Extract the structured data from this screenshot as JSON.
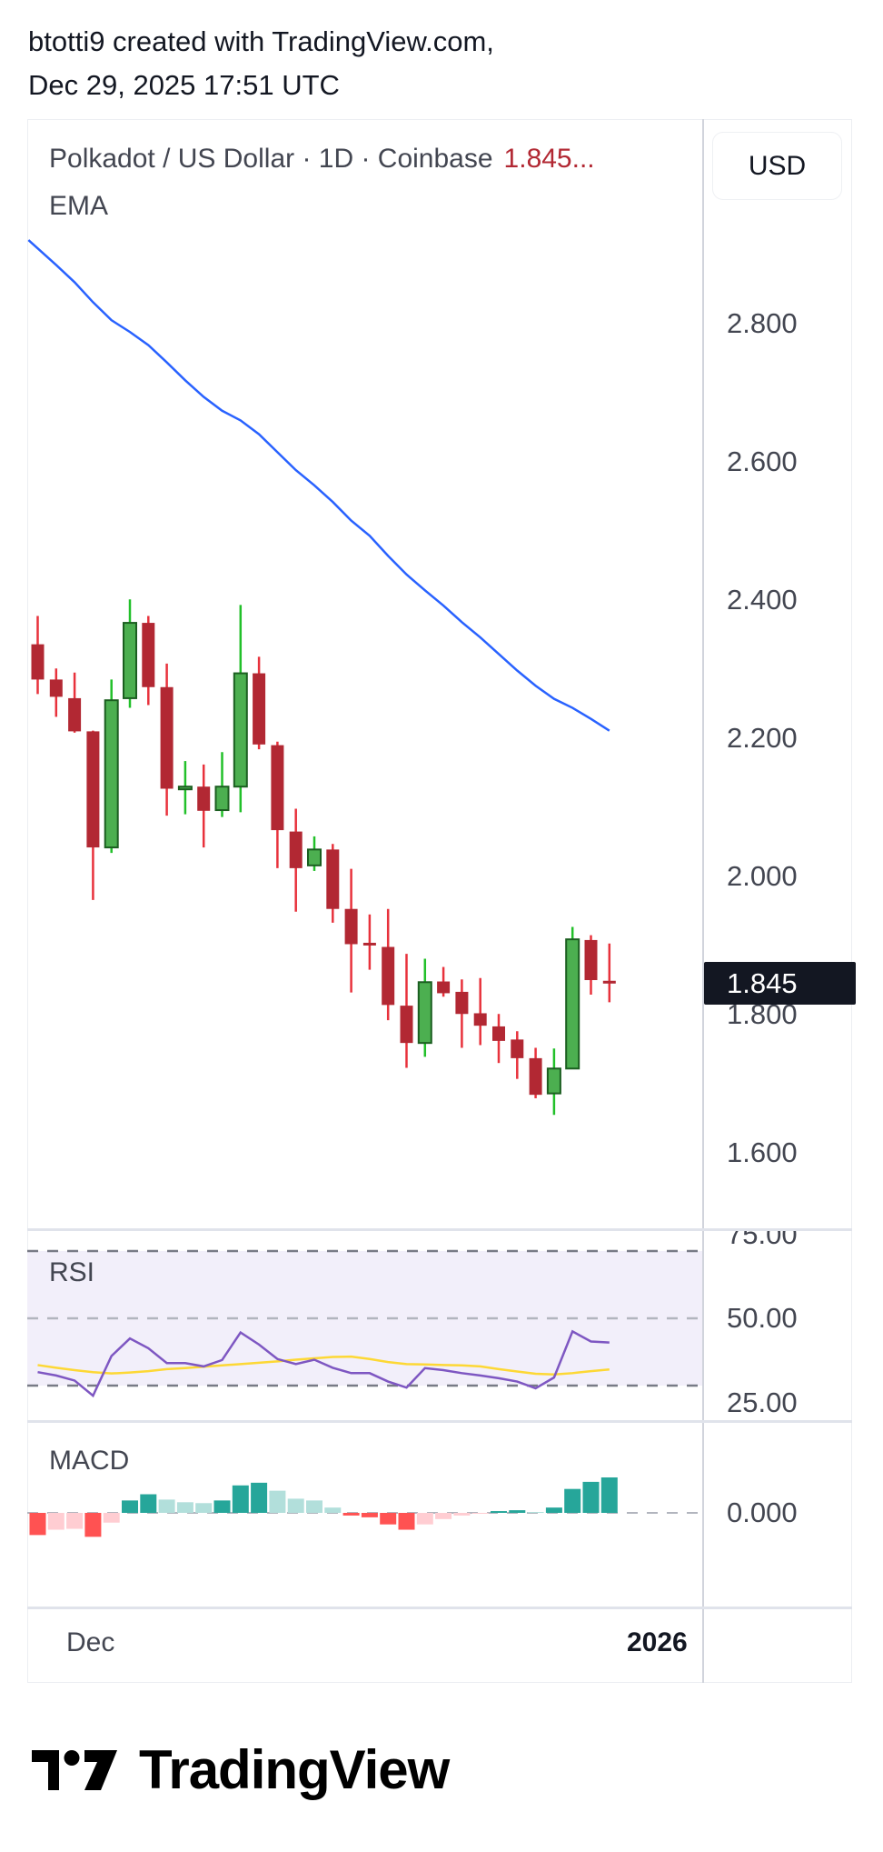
{
  "header": {
    "line1": "btotti9 created with TradingView.com,",
    "line2": "Dec 29, 2025 17:51 UTC"
  },
  "legend": {
    "symbol": "Polkadot / US Dollar · 1D · Coinbase",
    "last_value": "1.845...",
    "indicator": "EMA"
  },
  "currency_button": "USD",
  "last_price_label": "1.845",
  "colors": {
    "up_body": "#4caf50",
    "up_border": "#1b5e20",
    "up_wick": "#22c02a",
    "down_body": "#b22833",
    "down_wick": "#e8323c",
    "ema": "#2962ff",
    "rsi": "#7e57c2",
    "rsi_ma": "#fdd835",
    "rsi_band": "#f2effa",
    "macd_up_strong": "#26a69a",
    "macd_up_weak": "#b2dfdb",
    "macd_down_strong": "#ff5252",
    "macd_down_weak": "#ffcdd2",
    "last_price_bg": "#131722",
    "legend_value": "#b22833"
  },
  "rsi_pane": {
    "label": "RSI"
  },
  "macd_pane": {
    "label": "MACD"
  },
  "time_axis": {
    "labels": [
      "Dec",
      "2026"
    ]
  },
  "branding": {
    "logo_text": "TradingView"
  },
  "chart_data": [
    {
      "type": "candlestick",
      "title": "Polkadot / US Dollar · 1D · Coinbase",
      "ylim": [
        1.52,
        2.95
      ],
      "y_ticks": [
        "2.800",
        "2.600",
        "2.400",
        "2.200",
        "2.000",
        "1.800",
        "1.600"
      ],
      "y_tick_values": [
        2.8,
        2.6,
        2.4,
        2.2,
        2.0,
        1.8,
        1.6
      ],
      "x_labels": [
        "Dec",
        "2026"
      ],
      "grid": false,
      "ohlc": [
        [
          2.336,
          2.377,
          2.264,
          2.285
        ],
        [
          2.285,
          2.301,
          2.231,
          2.26
        ],
        [
          2.258,
          2.295,
          2.208,
          2.21
        ],
        [
          2.21,
          2.211,
          1.966,
          2.042
        ],
        [
          2.042,
          2.285,
          2.034,
          2.255
        ],
        [
          2.258,
          2.401,
          2.244,
          2.367
        ],
        [
          2.367,
          2.377,
          2.248,
          2.274
        ],
        [
          2.274,
          2.308,
          2.088,
          2.127
        ],
        [
          2.127,
          2.167,
          2.09,
          2.13
        ],
        [
          2.13,
          2.162,
          2.042,
          2.095
        ],
        [
          2.096,
          2.18,
          2.086,
          2.13
        ],
        [
          2.13,
          2.393,
          2.093,
          2.294
        ],
        [
          2.294,
          2.318,
          2.184,
          2.191
        ],
        [
          2.19,
          2.195,
          2.012,
          2.067
        ],
        [
          2.065,
          2.098,
          1.949,
          2.012
        ],
        [
          2.016,
          2.058,
          2.008,
          2.039
        ],
        [
          2.039,
          2.047,
          1.933,
          1.953
        ],
        [
          1.953,
          2.011,
          1.832,
          1.902
        ],
        [
          1.904,
          1.945,
          1.865,
          1.902
        ],
        [
          1.898,
          1.953,
          1.792,
          1.814
        ],
        [
          1.813,
          1.888,
          1.723,
          1.759
        ],
        [
          1.759,
          1.881,
          1.739,
          1.847
        ],
        [
          1.848,
          1.869,
          1.826,
          1.831
        ],
        [
          1.833,
          1.851,
          1.752,
          1.801
        ],
        [
          1.802,
          1.853,
          1.756,
          1.784
        ],
        [
          1.783,
          1.801,
          1.73,
          1.762
        ],
        [
          1.764,
          1.776,
          1.707,
          1.737
        ],
        [
          1.737,
          1.752,
          1.679,
          1.684
        ],
        [
          1.686,
          1.751,
          1.655,
          1.722
        ],
        [
          1.722,
          1.927,
          1.722,
          1.909
        ],
        [
          1.908,
          1.915,
          1.829,
          1.85
        ],
        [
          1.849,
          1.903,
          1.818,
          1.845
        ]
      ],
      "ema": [
        2.909,
        2.885,
        2.86,
        2.831,
        2.805,
        2.788,
        2.769,
        2.744,
        2.718,
        2.694,
        2.674,
        2.66,
        2.64,
        2.614,
        2.588,
        2.566,
        2.542,
        2.515,
        2.493,
        2.464,
        2.437,
        2.414,
        2.392,
        2.368,
        2.346,
        2.322,
        2.298,
        2.276,
        2.257,
        2.244,
        2.228,
        2.211
      ],
      "last_price": 1.845
    },
    {
      "type": "line",
      "title": "RSI",
      "ylim": [
        22,
        76
      ],
      "y_ticks": [
        "75.00",
        "50.00",
        "25.00"
      ],
      "y_tick_values": [
        75,
        50,
        25
      ],
      "levels": [
        70,
        50,
        30
      ],
      "series": [
        {
          "values": [
            34.0,
            33.0,
            31.5,
            27.0,
            38.8,
            44.0,
            41.1,
            36.7,
            36.7,
            35.7,
            37.6,
            45.8,
            42.2,
            37.9,
            36.4,
            37.7,
            35.3,
            33.7,
            33.7,
            31.2,
            29.4,
            35.2,
            34.6,
            33.7,
            33.0,
            32.2,
            31.2,
            29.2,
            32.4,
            46.1,
            43.1,
            42.8
          ]
        },
        {
          "values": [
            36.1,
            35.3,
            34.6,
            34.0,
            33.6,
            33.9,
            34.3,
            34.9,
            35.2,
            35.6,
            36.0,
            36.4,
            36.8,
            37.2,
            37.7,
            38.1,
            38.5,
            38.6,
            37.9,
            37.0,
            36.4,
            36.3,
            36.1,
            36.0,
            35.7,
            34.9,
            34.2,
            33.5,
            33.3,
            33.7,
            34.3,
            34.8
          ]
        }
      ]
    },
    {
      "type": "bar",
      "title": "MACD",
      "y_ticks": [
        "0.000"
      ],
      "y_tick_values": [
        0
      ],
      "values": [
        -0.025,
        -0.019,
        -0.018,
        -0.027,
        -0.011,
        0.014,
        0.021,
        0.015,
        0.012,
        0.011,
        0.014,
        0.031,
        0.034,
        0.025,
        0.016,
        0.014,
        0.006,
        -0.003,
        -0.005,
        -0.013,
        -0.019,
        -0.013,
        -0.007,
        -0.003,
        -0.001,
        0.002,
        0.003,
        0.001,
        0.006,
        0.027,
        0.035,
        0.04
      ]
    }
  ]
}
